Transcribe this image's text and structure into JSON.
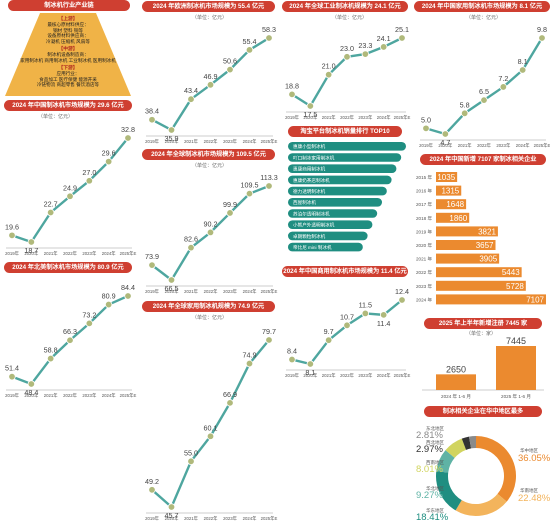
{
  "industry_chain": {
    "title": "制冰机行业产业链",
    "tiers": [
      {
        "heading": "【上游】",
        "lines": [
          "最核心原材料供应：",
          "钢材  塑料  铜等",
          "设备原材料供应商：",
          "冷凝机  压缩机  风扇等"
        ]
      },
      {
        "heading": "【中游】",
        "lines": [
          "制冰机设备制造商：",
          "家用制冰机  商用制冰机  工业制冰机  医用制冰机"
        ]
      },
      {
        "heading": "【下游】",
        "lines": [
          "应用行业：",
          "食品加工  医疗保健  能源开采",
          "冷链物流  商超零售  餐饮酒店等"
        ]
      }
    ]
  },
  "colors": {
    "accent": "#cf3f31",
    "line": "#4ea69f",
    "marker": "#b0b97b",
    "bar": "#eb8a2f",
    "teal_bar": "#1f8e81"
  },
  "chart_data": [
    {
      "id": "china_ice_machine",
      "type": "line",
      "title": "2024 年中国制冰机市场规模为 29.6 亿元",
      "unit": "（单位：亿元）",
      "x": [
        "2019年",
        "2020年",
        "2021年",
        "2022年",
        "2023年",
        "2024年",
        "2025年E"
      ],
      "values": [
        19.6,
        18.7,
        22.7,
        24.9,
        27.0,
        29.6,
        32.8
      ],
      "value_labels": [
        "19.6",
        "18.7",
        "22.7",
        "24.9",
        "27.0",
        "29.6",
        "32.8"
      ]
    },
    {
      "id": "na_ice_machine",
      "type": "line",
      "title": "2024 年北美制冰机市场规模为 80.9 亿元",
      "unit": "（单位：亿元）",
      "x": [
        "2019年",
        "2020年",
        "2021年",
        "2022年",
        "2023年",
        "2024年",
        "2025年E"
      ],
      "values": [
        51.4,
        48.4,
        58.8,
        66.3,
        73.2,
        80.9,
        84.4
      ],
      "value_labels": [
        "51.4",
        "48.4",
        "58.8",
        "66.3",
        "73.2",
        "80.9",
        "84.4"
      ]
    },
    {
      "id": "eu_ice_machine",
      "type": "line",
      "title": "2024 年欧洲制冰机市场规模为 55.4 亿元",
      "unit": "（单位：亿元）",
      "x": [
        "2019年",
        "2020年",
        "2021年",
        "2022年",
        "2023年",
        "2024年",
        "2025年E"
      ],
      "values": [
        38.4,
        35.9,
        43.4,
        46.9,
        50.6,
        55.4,
        58.3
      ],
      "value_labels": [
        "38.4",
        "35.9",
        "43.4",
        "46.9",
        "50.6",
        "55.4",
        "58.3"
      ]
    },
    {
      "id": "global_ice_machine",
      "type": "line",
      "title": "2024 年全球制冰机市场规模为 109.5 亿元",
      "unit": "（单位：亿元）",
      "x": [
        "2019年",
        "2020年",
        "2021年",
        "2022年",
        "2023年",
        "2024年",
        "2025年E"
      ],
      "values": [
        73.9,
        66.5,
        82.6,
        90.2,
        99.9,
        109.5,
        113.3
      ],
      "value_labels": [
        "73.9",
        "66.5",
        "82.6",
        "90.2",
        "99.9",
        "109.5",
        "113.3"
      ]
    },
    {
      "id": "global_household",
      "type": "line",
      "title": "2024 年全球家用制冰机规模为 74.9 亿元",
      "unit": "（单位：亿元）",
      "x": [
        "2019年",
        "2020年",
        "2021年",
        "2022年",
        "2023年",
        "2024年",
        "2025年E"
      ],
      "values": [
        49.2,
        45.7,
        55.0,
        60.1,
        66.9,
        74.9,
        79.7
      ],
      "value_labels": [
        "49.2",
        "45.7",
        "55.0",
        "60.1",
        "66.9",
        "74.9",
        "79.7"
      ]
    },
    {
      "id": "global_industrial",
      "type": "line",
      "title": "2024 年全球工业制冰机规模为 24.1 亿元",
      "unit": "（单位：亿元）",
      "x": [
        "2019年",
        "2020年",
        "2021年",
        "2022年",
        "2023年",
        "2024年",
        "2025年E"
      ],
      "values": [
        18.8,
        17.5,
        21.0,
        23.0,
        23.3,
        24.1,
        25.1
      ],
      "value_labels": [
        "18.8",
        "17.5",
        "21.0",
        "23.0",
        "23.3",
        "24.1",
        "25.1"
      ]
    },
    {
      "id": "china_household",
      "type": "line",
      "title": "2024 年中国家用制冰机市场规模为 8.1 亿元",
      "unit": "（单位：亿元）",
      "x": [
        "2019年",
        "2020年",
        "2021年",
        "2022年",
        "2023年",
        "2024年",
        "2025年E"
      ],
      "values": [
        5.0,
        4.7,
        5.8,
        6.5,
        7.2,
        8.1,
        9.8
      ],
      "value_labels": [
        "5.0",
        "4.7",
        "5.8",
        "6.5",
        "7.2",
        "8.1",
        "9.8"
      ]
    },
    {
      "id": "china_commercial",
      "type": "line",
      "title": "2024 年中国商用制冰机市场规模为 11.4 亿元",
      "unit": "",
      "x": [
        "2019年",
        "2020年",
        "2021年",
        "2022年",
        "2023年",
        "2024年",
        "2025年E"
      ],
      "values": [
        8.4,
        8.1,
        9.7,
        10.7,
        11.5,
        11.4,
        12.4
      ],
      "value_labels": [
        "8.4",
        "8.1",
        "9.7",
        "10.7",
        "11.5",
        "11.4",
        "12.4"
      ]
    },
    {
      "id": "taobao_top10",
      "type": "bar",
      "orientation": "horizontal",
      "title": "淘宝平台制冰机销量排行 TOP10",
      "categories": [
        "惠康小型制冰机",
        "吖口制冰家用制冰机",
        "惠康商用制冰机",
        "惠康奶茶店制冰机",
        "德力透明制冰机",
        "西屋制冰机",
        "苏泊尔透明制冰机",
        "小熊户外透明制冰机",
        "卓朗颗粒制冰机",
        "帝比尼 mini 制冰机"
      ],
      "values": [
        10,
        9,
        8,
        7,
        6,
        5,
        4,
        3,
        2,
        1
      ]
    },
    {
      "id": "china_new_registrations",
      "type": "bar",
      "orientation": "horizontal",
      "title": "2024 年中国新增 7107 家制冰相关企业",
      "categories": [
        "2015 年",
        "2016 年",
        "2017 年",
        "2018 年",
        "2019 年",
        "2020 年",
        "2021 年",
        "2022 年",
        "2023 年",
        "2024 年"
      ],
      "values": [
        1035,
        1315,
        1648,
        1860,
        3821,
        3657,
        3905,
        5443,
        5728,
        7107
      ],
      "value_labels": [
        "1035",
        "1315",
        "1648",
        "1860",
        "3821",
        "3657",
        "3905",
        "5443",
        "5728",
        "7107"
      ]
    },
    {
      "id": "h1_2025_new",
      "type": "bar",
      "title": "2025 年上半年新增注册 7445 家",
      "unit": "（单位：家）",
      "categories": [
        "2024 年 1-6 月",
        "2025 年 1-6 月"
      ],
      "values": [
        2650,
        7445
      ],
      "value_labels": [
        "2650",
        "7445"
      ]
    },
    {
      "id": "region_distribution",
      "type": "pie",
      "title": "制冰相关企业在华中地区最多",
      "slices": [
        {
          "label": "华中地区",
          "value": 36.05,
          "text": "36.05%",
          "color": "#eb8a2f"
        },
        {
          "label": "华南地区",
          "value": 22.48,
          "text": "22.48%",
          "color": "#f3b45c"
        },
        {
          "label": "华东地区",
          "value": 18.41,
          "text": "18.41%",
          "color": "#1f8e81"
        },
        {
          "label": "华北地区",
          "value": 9.27,
          "text": "9.27%",
          "color": "#5fb3a5"
        },
        {
          "label": "西南地区",
          "value": 8.01,
          "text": "8.01%",
          "color": "#d1d45f"
        },
        {
          "label": "西北地区",
          "value": 2.97,
          "text": "2.97%",
          "color": "#333333"
        },
        {
          "label": "东北地区",
          "value": 2.81,
          "text": "2.81%",
          "color": "#8a8a8a"
        }
      ]
    }
  ]
}
